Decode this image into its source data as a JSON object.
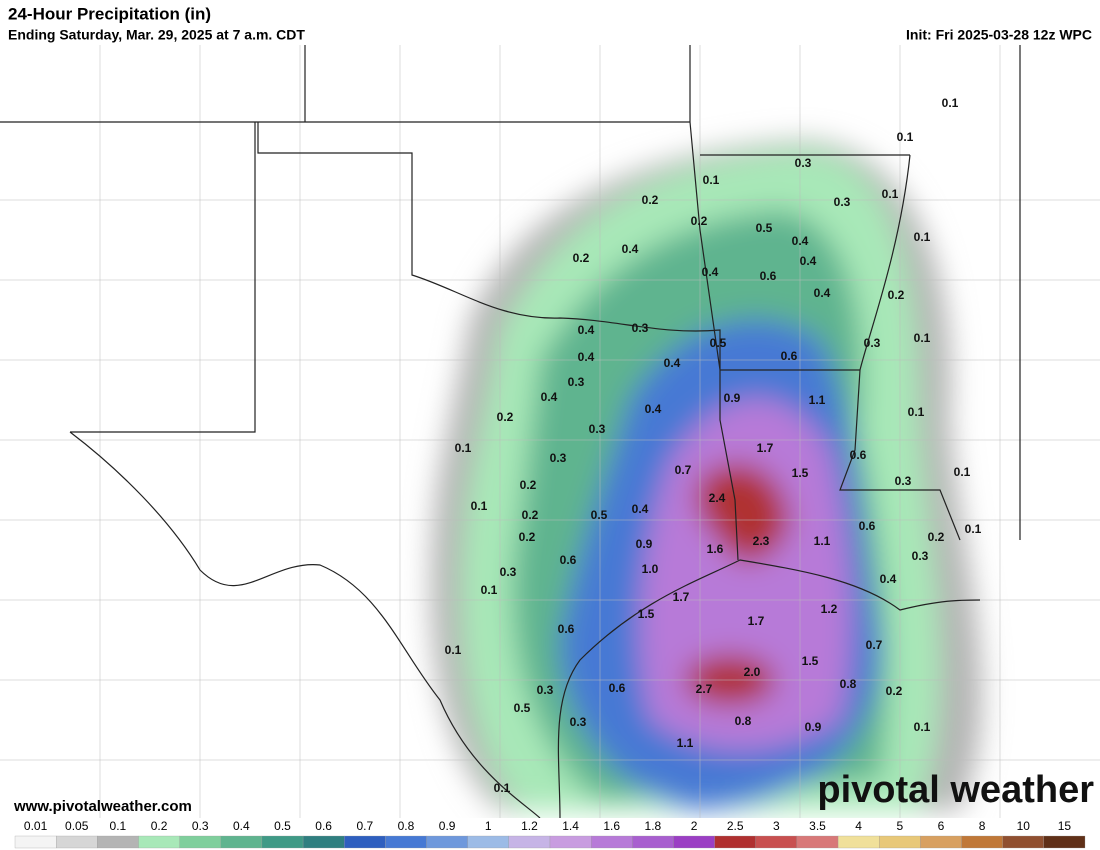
{
  "header": {
    "title": "24-Hour Precipitation (in)",
    "subtitle": "Ending Saturday, Mar. 29, 2025 at 7 a.m. CDT",
    "init": "Init: Fri 2025-03-28 12z WPC"
  },
  "footer": {
    "website": "www.pivotalweather.com",
    "logo": "pivotal weather"
  },
  "map_labels": [
    "0.1",
    "0.1",
    "0.3",
    "0.1",
    "0.1",
    "0.3",
    "0.2",
    "0.2",
    "0.5",
    "0.4",
    "0.1",
    "0.4",
    "0.2",
    "0.4",
    "0.4",
    "0.6",
    "0.4",
    "0.2",
    "0.4",
    "0.3",
    "0.5",
    "0.3",
    "0.1",
    "0.4",
    "0.6",
    "0.4",
    "0.3",
    "0.4",
    "0.9",
    "1.1",
    "0.4",
    "0.1",
    "0.2",
    "0.3",
    "0.1",
    "1.7",
    "0.6",
    "0.3",
    "0.7",
    "1.5",
    "0.1",
    "0.3",
    "0.2",
    "2.4",
    "0.1",
    "0.4",
    "0.2",
    "0.5",
    "0.6",
    "0.1",
    "0.2",
    "2.3",
    "1.1",
    "0.2",
    "0.9",
    "1.6",
    "0.6",
    "0.3",
    "1.0",
    "0.3",
    "1.7",
    "0.4",
    "0.1",
    "1.2",
    "1.5",
    "1.7",
    "0.6",
    "0.7",
    "0.1",
    "1.5",
    "2.0",
    "2.7",
    "0.6",
    "0.3",
    "0.8",
    "0.2",
    "0.5",
    "0.3",
    "0.8",
    "0.9",
    "0.1",
    "1.1",
    "0.1"
  ],
  "colorbar": {
    "levels": [
      "0.01",
      "0.05",
      "0.1",
      "0.2",
      "0.3",
      "0.4",
      "0.5",
      "0.6",
      "0.7",
      "0.8",
      "0.9",
      "1",
      "1.2",
      "1.4",
      "1.6",
      "1.8",
      "2",
      "2.5",
      "3",
      "3.5",
      "4",
      "5",
      "6",
      "8",
      "10",
      "15"
    ],
    "colors": [
      "#f4f4f4",
      "#d6d6d6",
      "#b4b4b4",
      "#a8e8b8",
      "#7fcf9c",
      "#5fb48f",
      "#3f9a86",
      "#2f7f80",
      "#2e5fbf",
      "#4679d4",
      "#6e98dc",
      "#9cbbe6",
      "#c6b4e6",
      "#c89ce0",
      "#b77ad8",
      "#a85fcf",
      "#9b3fc4",
      "#b03030",
      "#c85050",
      "#d87878",
      "#f0e09a",
      "#e8c878",
      "#d8a060",
      "#c07838",
      "#905030",
      "#603018"
    ]
  }
}
